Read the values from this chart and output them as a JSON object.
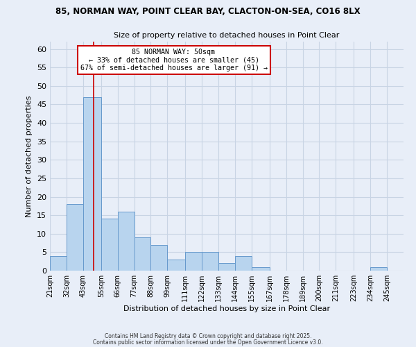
{
  "title1": "85, NORMAN WAY, POINT CLEAR BAY, CLACTON-ON-SEA, CO16 8LX",
  "title2": "Size of property relative to detached houses in Point Clear",
  "xlabel": "Distribution of detached houses by size in Point Clear",
  "ylabel": "Number of detached properties",
  "bar_labels": [
    "21sqm",
    "32sqm",
    "43sqm",
    "55sqm",
    "66sqm",
    "77sqm",
    "88sqm",
    "99sqm",
    "111sqm",
    "122sqm",
    "133sqm",
    "144sqm",
    "155sqm",
    "167sqm",
    "178sqm",
    "189sqm",
    "200sqm",
    "211sqm",
    "223sqm",
    "234sqm",
    "245sqm"
  ],
  "bar_values": [
    4,
    18,
    47,
    14,
    16,
    9,
    7,
    3,
    5,
    5,
    2,
    4,
    1,
    0,
    0,
    0,
    0,
    0,
    0,
    1,
    0
  ],
  "bar_color": "#b8d4ee",
  "bar_edge_color": "#6699cc",
  "bg_color": "#e8eef8",
  "grid_color": "#c8d4e4",
  "annotation_box_text": "85 NORMAN WAY: 50sqm\n← 33% of detached houses are smaller (45)\n67% of semi-detached houses are larger (91) →",
  "vline_x": 50,
  "vline_color": "#cc0000",
  "annotation_box_color": "#ffffff",
  "annotation_box_edge_color": "#cc0000",
  "ylim": [
    0,
    62
  ],
  "yticks": [
    0,
    5,
    10,
    15,
    20,
    25,
    30,
    35,
    40,
    45,
    50,
    55,
    60
  ],
  "footer1": "Contains HM Land Registry data © Crown copyright and database right 2025.",
  "footer2": "Contains public sector information licensed under the Open Government Licence v3.0.",
  "bin_edges_left": [
    21,
    32,
    43,
    55,
    66,
    77,
    88,
    99,
    111,
    122,
    133,
    144,
    155,
    167,
    178,
    189,
    200,
    211,
    223,
    234,
    245
  ],
  "xmin": 21,
  "xmax": 256
}
